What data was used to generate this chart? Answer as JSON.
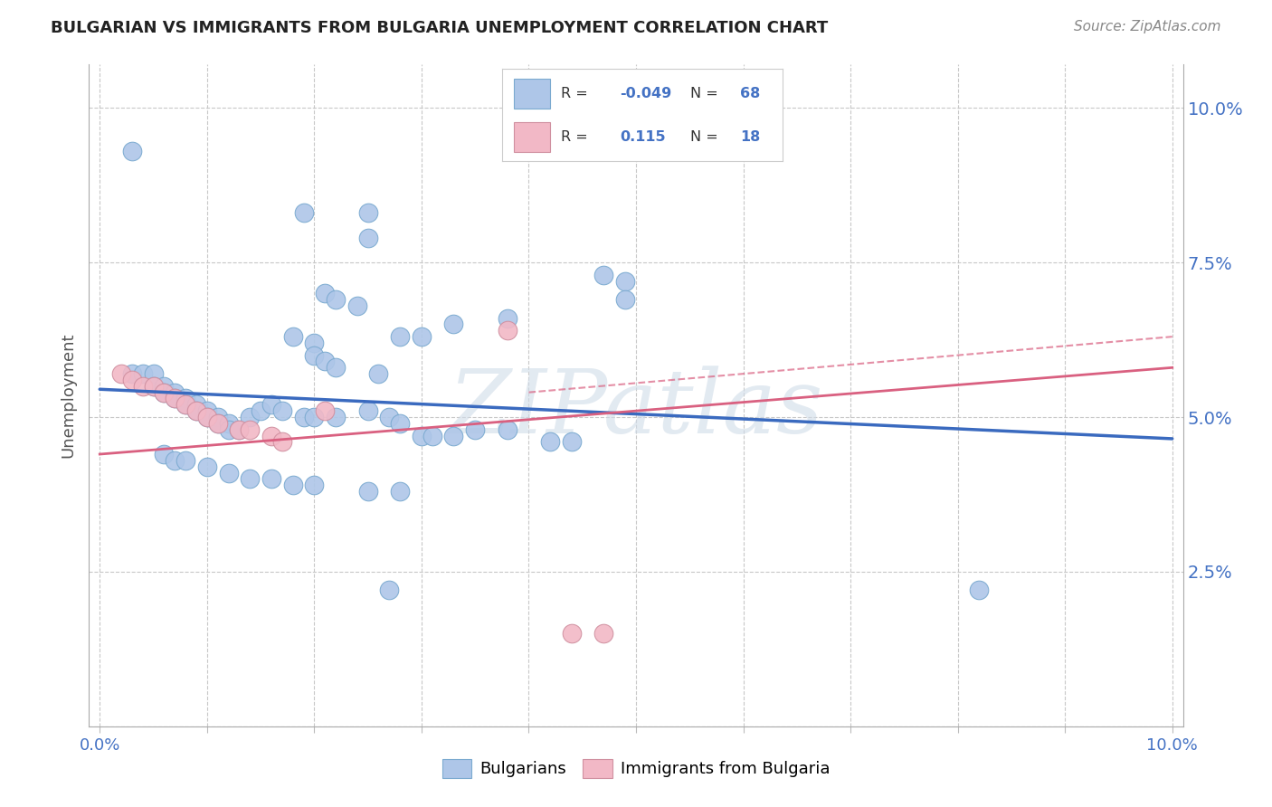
{
  "title": "BULGARIAN VS IMMIGRANTS FROM BULGARIA UNEMPLOYMENT CORRELATION CHART",
  "source": "Source: ZipAtlas.com",
  "ylabel": "Unemployment",
  "watermark": "ZIPatlas",
  "bg_color": "#ffffff",
  "grid_color": "#c8c8c8",
  "blue_color": "#aec6e8",
  "pink_color": "#f2b8c6",
  "blue_line_color": "#3a6abf",
  "pink_line_color": "#d96080",
  "blue_scatter": [
    [
      0.003,
      0.093
    ],
    [
      0.019,
      0.083
    ],
    [
      0.021,
      0.07
    ],
    [
      0.025,
      0.083
    ],
    [
      0.025,
      0.079
    ],
    [
      0.022,
      0.069
    ],
    [
      0.024,
      0.068
    ],
    [
      0.018,
      0.063
    ],
    [
      0.02,
      0.062
    ],
    [
      0.02,
      0.06
    ],
    [
      0.021,
      0.059
    ],
    [
      0.022,
      0.058
    ],
    [
      0.026,
      0.057
    ],
    [
      0.028,
      0.063
    ],
    [
      0.03,
      0.063
    ],
    [
      0.033,
      0.065
    ],
    [
      0.038,
      0.066
    ],
    [
      0.047,
      0.073
    ],
    [
      0.049,
      0.072
    ],
    [
      0.049,
      0.069
    ],
    [
      0.003,
      0.057
    ],
    [
      0.004,
      0.057
    ],
    [
      0.005,
      0.057
    ],
    [
      0.005,
      0.055
    ],
    [
      0.006,
      0.055
    ],
    [
      0.006,
      0.054
    ],
    [
      0.007,
      0.054
    ],
    [
      0.007,
      0.053
    ],
    [
      0.008,
      0.053
    ],
    [
      0.008,
      0.052
    ],
    [
      0.009,
      0.052
    ],
    [
      0.009,
      0.051
    ],
    [
      0.01,
      0.051
    ],
    [
      0.01,
      0.05
    ],
    [
      0.011,
      0.05
    ],
    [
      0.011,
      0.049
    ],
    [
      0.012,
      0.049
    ],
    [
      0.012,
      0.048
    ],
    [
      0.013,
      0.048
    ],
    [
      0.014,
      0.05
    ],
    [
      0.015,
      0.051
    ],
    [
      0.016,
      0.052
    ],
    [
      0.017,
      0.051
    ],
    [
      0.019,
      0.05
    ],
    [
      0.02,
      0.05
    ],
    [
      0.022,
      0.05
    ],
    [
      0.025,
      0.051
    ],
    [
      0.027,
      0.05
    ],
    [
      0.028,
      0.049
    ],
    [
      0.03,
      0.047
    ],
    [
      0.031,
      0.047
    ],
    [
      0.033,
      0.047
    ],
    [
      0.035,
      0.048
    ],
    [
      0.038,
      0.048
    ],
    [
      0.042,
      0.046
    ],
    [
      0.044,
      0.046
    ],
    [
      0.006,
      0.044
    ],
    [
      0.007,
      0.043
    ],
    [
      0.008,
      0.043
    ],
    [
      0.01,
      0.042
    ],
    [
      0.012,
      0.041
    ],
    [
      0.014,
      0.04
    ],
    [
      0.016,
      0.04
    ],
    [
      0.018,
      0.039
    ],
    [
      0.02,
      0.039
    ],
    [
      0.025,
      0.038
    ],
    [
      0.028,
      0.038
    ],
    [
      0.027,
      0.022
    ],
    [
      0.082,
      0.022
    ]
  ],
  "pink_scatter": [
    [
      0.002,
      0.057
    ],
    [
      0.003,
      0.056
    ],
    [
      0.004,
      0.055
    ],
    [
      0.005,
      0.055
    ],
    [
      0.006,
      0.054
    ],
    [
      0.007,
      0.053
    ],
    [
      0.008,
      0.052
    ],
    [
      0.009,
      0.051
    ],
    [
      0.01,
      0.05
    ],
    [
      0.011,
      0.049
    ],
    [
      0.013,
      0.048
    ],
    [
      0.014,
      0.048
    ],
    [
      0.016,
      0.047
    ],
    [
      0.017,
      0.046
    ],
    [
      0.021,
      0.051
    ],
    [
      0.038,
      0.064
    ],
    [
      0.044,
      0.015
    ],
    [
      0.047,
      0.015
    ]
  ],
  "xlim": [
    -0.001,
    0.101
  ],
  "ylim": [
    0.0,
    0.107
  ],
  "yticks": [
    0.0,
    0.025,
    0.05,
    0.075,
    0.1
  ],
  "ytick_labels": [
    "",
    "2.5%",
    "5.0%",
    "7.5%",
    "10.0%"
  ],
  "blue_line": [
    [
      0.0,
      0.0545
    ],
    [
      0.1,
      0.0465
    ]
  ],
  "pink_line": [
    [
      0.0,
      0.044
    ],
    [
      0.1,
      0.058
    ]
  ],
  "pink_dashed_line": [
    [
      0.04,
      0.054
    ],
    [
      0.1,
      0.063
    ]
  ]
}
